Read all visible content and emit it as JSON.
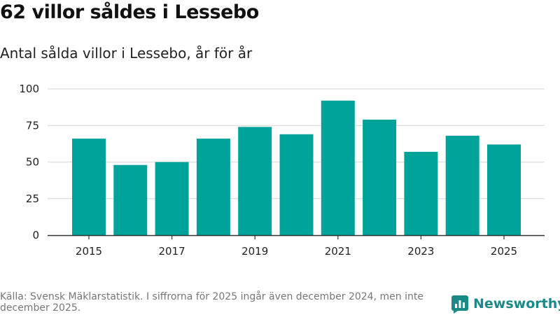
{
  "header": {
    "title": "62 villor såldes i Lessebo",
    "subtitle": "Antal sålda villor i Lessebo, år för år"
  },
  "chart_data": {
    "type": "bar",
    "title": "62 villor såldes i Lessebo",
    "subtitle": "Antal sålda villor i Lessebo, år för år",
    "xlabel": "",
    "ylabel": "",
    "categories": [
      "2015",
      "2016",
      "2017",
      "2018",
      "2019",
      "2020",
      "2021",
      "2022",
      "2023",
      "2024",
      "2025"
    ],
    "values": [
      66,
      48,
      50,
      66,
      74,
      69,
      92,
      79,
      57,
      68,
      62
    ],
    "x_tick_labels": [
      "2015",
      "2017",
      "2019",
      "2021",
      "2023",
      "2025"
    ],
    "ylim": [
      0,
      100
    ],
    "yticks": [
      0,
      25,
      50,
      75,
      100
    ],
    "grid": true,
    "bar_color": "#00a39a"
  },
  "footer": {
    "source_note": "Källa: Svensk Mäklarstatistik. I siffrorna för 2025 ingår även december 2024, men inte december 2025.",
    "brand_name": "Newsworthy"
  },
  "colors": {
    "bar": "#00a39a",
    "brand": "#1a8a87",
    "grid": "#dddddd",
    "axis": "#333333"
  }
}
